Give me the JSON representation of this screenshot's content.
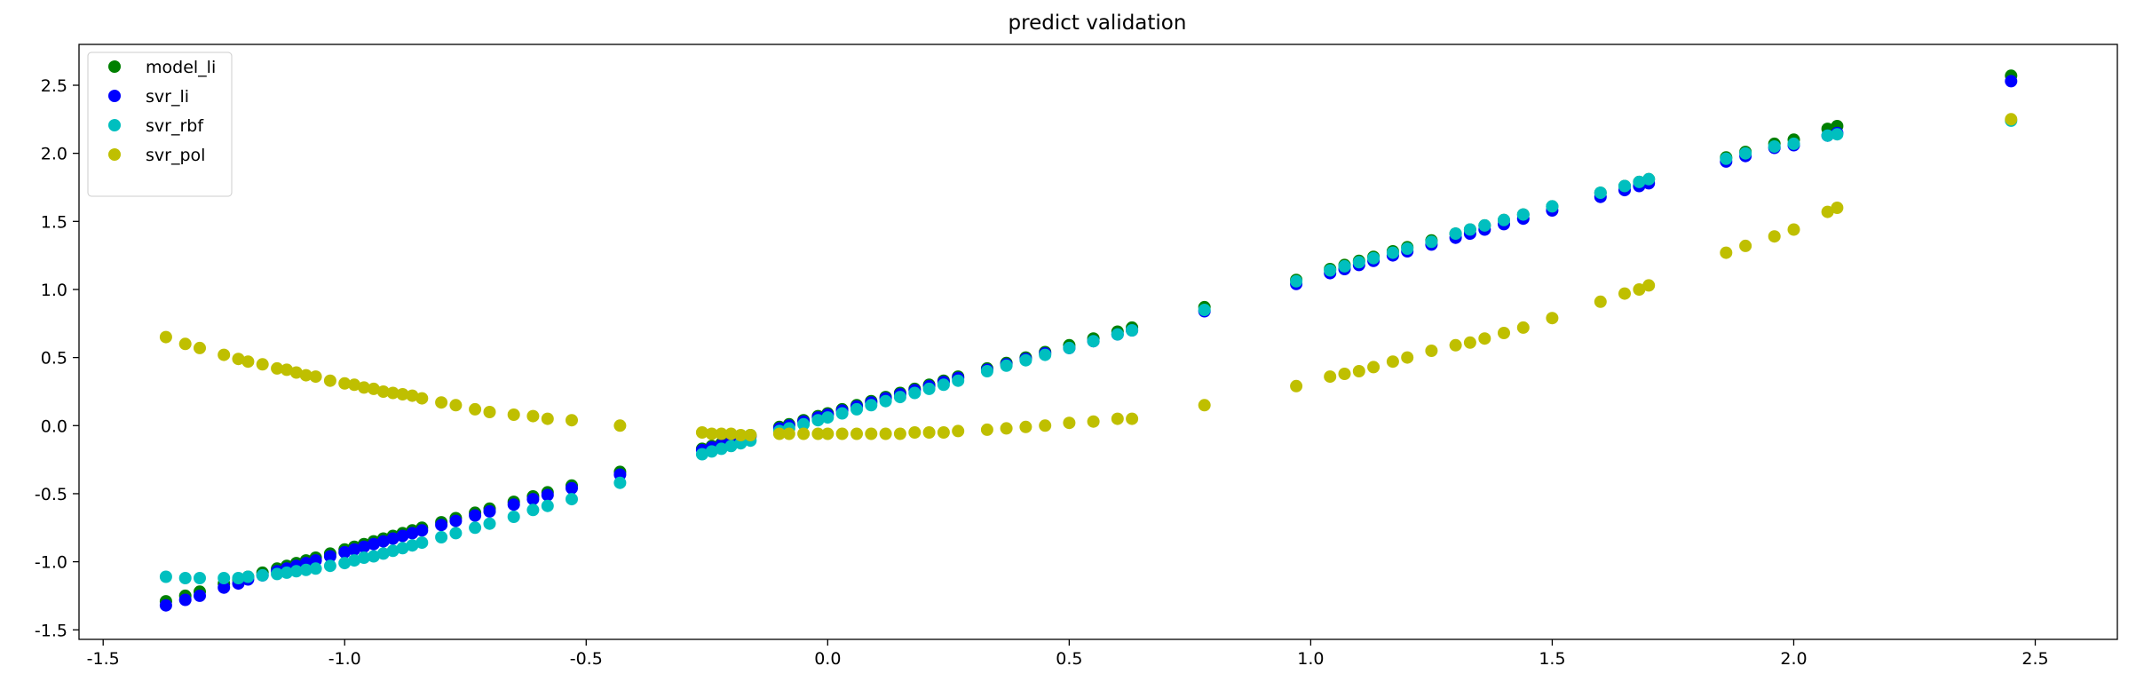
{
  "chart_data": {
    "type": "scatter",
    "title": "predict validation",
    "xlabel": "",
    "ylabel": "",
    "xlim": [
      -1.55,
      2.67
    ],
    "ylim": [
      -1.57,
      2.8
    ],
    "x_ticks": [
      -1.5,
      -1.0,
      -0.5,
      0.0,
      0.5,
      1.0,
      1.5,
      2.0,
      2.5
    ],
    "y_ticks": [
      -1.5,
      -1.0,
      -0.5,
      0.0,
      0.5,
      1.0,
      1.5,
      2.0,
      2.5
    ],
    "x_tick_labels": [
      "-1.5",
      "-1.0",
      "-0.5",
      "0.0",
      "0.5",
      "1.0",
      "1.5",
      "2.0",
      "2.5"
    ],
    "y_tick_labels": [
      "-1.5",
      "-1.0",
      "-0.5",
      "0.0",
      "0.5",
      "1.0",
      "1.5",
      "2.0",
      "2.5"
    ],
    "grid": false,
    "legend_position": "top-left",
    "x": [
      -1.37,
      -1.33,
      -1.3,
      -1.25,
      -1.22,
      -1.2,
      -1.17,
      -1.14,
      -1.12,
      -1.1,
      -1.08,
      -1.06,
      -1.03,
      -1.0,
      -0.98,
      -0.96,
      -0.94,
      -0.92,
      -0.9,
      -0.88,
      -0.86,
      -0.84,
      -0.8,
      -0.77,
      -0.73,
      -0.7,
      -0.65,
      -0.61,
      -0.58,
      -0.53,
      -0.43,
      -0.26,
      -0.24,
      -0.22,
      -0.2,
      -0.18,
      -0.16,
      -0.1,
      -0.08,
      -0.05,
      -0.02,
      0.0,
      0.03,
      0.06,
      0.09,
      0.12,
      0.15,
      0.18,
      0.21,
      0.24,
      0.27,
      0.33,
      0.37,
      0.41,
      0.45,
      0.5,
      0.55,
      0.6,
      0.63,
      0.78,
      0.97,
      1.04,
      1.07,
      1.1,
      1.13,
      1.17,
      1.2,
      1.25,
      1.3,
      1.33,
      1.36,
      1.4,
      1.44,
      1.5,
      1.6,
      1.65,
      1.68,
      1.7,
      1.86,
      1.9,
      1.96,
      2.0,
      2.07,
      2.09,
      2.45
    ],
    "series": [
      {
        "name": "model_li",
        "color": "#008000",
        "values": [
          -1.29,
          -1.25,
          -1.22,
          -1.16,
          -1.13,
          -1.11,
          -1.08,
          -1.05,
          -1.03,
          -1.01,
          -0.99,
          -0.97,
          -0.94,
          -0.91,
          -0.89,
          -0.87,
          -0.85,
          -0.83,
          -0.81,
          -0.79,
          -0.77,
          -0.75,
          -0.71,
          -0.68,
          -0.64,
          -0.61,
          -0.56,
          -0.52,
          -0.49,
          -0.44,
          -0.34,
          -0.17,
          -0.15,
          -0.13,
          -0.11,
          -0.09,
          -0.07,
          -0.01,
          0.01,
          0.04,
          0.07,
          0.09,
          0.12,
          0.15,
          0.18,
          0.21,
          0.24,
          0.27,
          0.3,
          0.33,
          0.36,
          0.42,
          0.46,
          0.5,
          0.54,
          0.59,
          0.64,
          0.69,
          0.72,
          0.87,
          1.07,
          1.15,
          1.18,
          1.21,
          1.24,
          1.28,
          1.31,
          1.36,
          1.41,
          1.44,
          1.47,
          1.51,
          1.55,
          1.61,
          1.71,
          1.76,
          1.79,
          1.81,
          1.97,
          2.01,
          2.07,
          2.1,
          2.18,
          2.2,
          2.57
        ]
      },
      {
        "name": "svr_li",
        "color": "#0000ff",
        "values": [
          -1.32,
          -1.28,
          -1.25,
          -1.19,
          -1.16,
          -1.13,
          -1.1,
          -1.07,
          -1.05,
          -1.03,
          -1.01,
          -0.99,
          -0.96,
          -0.93,
          -0.91,
          -0.89,
          -0.87,
          -0.85,
          -0.83,
          -0.81,
          -0.79,
          -0.77,
          -0.73,
          -0.7,
          -0.66,
          -0.63,
          -0.58,
          -0.54,
          -0.51,
          -0.46,
          -0.36,
          -0.18,
          -0.16,
          -0.14,
          -0.12,
          -0.1,
          -0.08,
          -0.02,
          0.0,
          0.03,
          0.06,
          0.08,
          0.11,
          0.14,
          0.17,
          0.2,
          0.23,
          0.26,
          0.29,
          0.32,
          0.35,
          0.41,
          0.45,
          0.49,
          0.53,
          0.57,
          0.62,
          0.67,
          0.7,
          0.84,
          1.04,
          1.12,
          1.15,
          1.18,
          1.21,
          1.25,
          1.28,
          1.33,
          1.38,
          1.41,
          1.44,
          1.48,
          1.52,
          1.58,
          1.68,
          1.73,
          1.76,
          1.78,
          1.94,
          1.98,
          2.04,
          2.06,
          2.13,
          2.15,
          2.53
        ]
      },
      {
        "name": "svr_rbf",
        "color": "#00bfbf",
        "values": [
          -1.11,
          -1.12,
          -1.12,
          -1.12,
          -1.12,
          -1.11,
          -1.1,
          -1.09,
          -1.08,
          -1.07,
          -1.06,
          -1.05,
          -1.03,
          -1.01,
          -0.99,
          -0.97,
          -0.96,
          -0.94,
          -0.92,
          -0.9,
          -0.88,
          -0.86,
          -0.82,
          -0.79,
          -0.75,
          -0.72,
          -0.67,
          -0.62,
          -0.59,
          -0.54,
          -0.42,
          -0.21,
          -0.19,
          -0.17,
          -0.15,
          -0.13,
          -0.11,
          -0.04,
          -0.02,
          0.01,
          0.04,
          0.06,
          0.09,
          0.12,
          0.15,
          0.18,
          0.21,
          0.24,
          0.27,
          0.3,
          0.33,
          0.4,
          0.44,
          0.48,
          0.52,
          0.57,
          0.62,
          0.67,
          0.7,
          0.85,
          1.06,
          1.14,
          1.17,
          1.2,
          1.23,
          1.27,
          1.3,
          1.35,
          1.41,
          1.44,
          1.47,
          1.51,
          1.55,
          1.61,
          1.71,
          1.76,
          1.79,
          1.81,
          1.96,
          2.0,
          2.05,
          2.07,
          2.13,
          2.14,
          2.24
        ]
      },
      {
        "name": "svr_pol",
        "color": "#bfbf00",
        "values": [
          0.65,
          0.6,
          0.57,
          0.52,
          0.49,
          0.47,
          0.45,
          0.42,
          0.41,
          0.39,
          0.37,
          0.36,
          0.33,
          0.31,
          0.3,
          0.28,
          0.27,
          0.25,
          0.24,
          0.23,
          0.22,
          0.2,
          0.17,
          0.15,
          0.12,
          0.1,
          0.08,
          0.07,
          0.05,
          0.04,
          0.0,
          -0.05,
          -0.06,
          -0.06,
          -0.06,
          -0.07,
          -0.07,
          -0.06,
          -0.06,
          -0.06,
          -0.06,
          -0.06,
          -0.06,
          -0.06,
          -0.06,
          -0.06,
          -0.06,
          -0.05,
          -0.05,
          -0.05,
          -0.04,
          -0.03,
          -0.02,
          -0.01,
          0.0,
          0.02,
          0.03,
          0.05,
          0.05,
          0.15,
          0.29,
          0.36,
          0.38,
          0.4,
          0.43,
          0.47,
          0.5,
          0.55,
          0.59,
          0.61,
          0.64,
          0.68,
          0.72,
          0.79,
          0.91,
          0.97,
          1.0,
          1.03,
          1.27,
          1.32,
          1.39,
          1.44,
          1.57,
          1.6,
          2.25
        ]
      }
    ]
  }
}
